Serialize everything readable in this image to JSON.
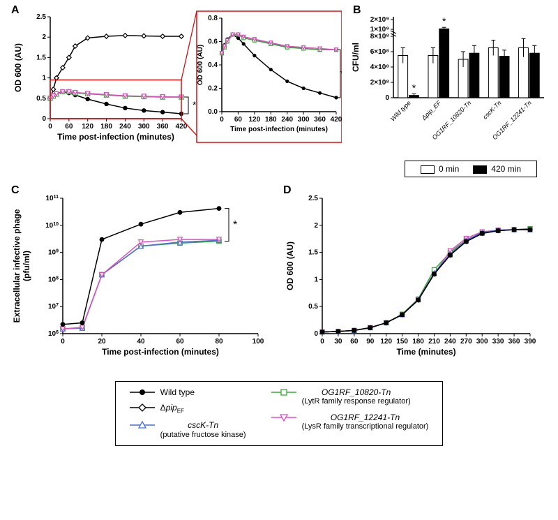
{
  "colors": {
    "black": "#000000",
    "white": "#ffffff",
    "blue": "#4a6fd8",
    "green": "#38a838",
    "magenta": "#e050c0",
    "red_box": "#d01010"
  },
  "series": {
    "wild_type": {
      "label": "Wild type",
      "color": "#000000",
      "marker": "filled-circle"
    },
    "dpip": {
      "label": "Δpip",
      "sub": "EF",
      "color": "#000000",
      "marker": "open-diamond"
    },
    "cscK": {
      "label": "cscK-Tn",
      "sub": "(putative fructose kinase)",
      "color": "#4a6fd8",
      "marker": "open-triangle-up"
    },
    "og10820": {
      "label": "OG1RF_10820-Tn",
      "sub": "(LytR family response regulator)",
      "color": "#38a838",
      "marker": "open-square"
    },
    "og12241": {
      "label": "OG1RF_12241-Tn",
      "sub": "(LysR family transcriptional regulator)",
      "color": "#e050c0",
      "marker": "open-triangle-down"
    }
  },
  "panelA": {
    "label": "A",
    "xlabel": "Time post-infection (minutes)",
    "ylabel": "OD 600 (AU)",
    "ylim": [
      0,
      2.5
    ],
    "ytick_step": 0.5,
    "xlim": [
      0,
      420
    ],
    "xticks": [
      0,
      60,
      120,
      180,
      240,
      300,
      360,
      420
    ],
    "x": [
      0,
      10,
      20,
      40,
      60,
      80,
      120,
      180,
      240,
      300,
      360,
      420
    ],
    "wild_type": [
      0.5,
      0.57,
      0.62,
      0.66,
      0.63,
      0.58,
      0.48,
      0.36,
      0.26,
      0.2,
      0.16,
      0.12
    ],
    "dpip": [
      0.5,
      0.72,
      1.0,
      1.25,
      1.5,
      1.78,
      1.98,
      2.02,
      2.04,
      2.03,
      2.02,
      2.02
    ],
    "cscK": [
      0.5,
      0.56,
      0.6,
      0.66,
      0.66,
      0.64,
      0.62,
      0.58,
      0.56,
      0.54,
      0.53,
      0.53
    ],
    "og10820": [
      0.5,
      0.55,
      0.6,
      0.66,
      0.66,
      0.63,
      0.61,
      0.58,
      0.55,
      0.54,
      0.53,
      0.53
    ],
    "og12241": [
      0.5,
      0.56,
      0.61,
      0.66,
      0.66,
      0.64,
      0.62,
      0.59,
      0.56,
      0.55,
      0.54,
      0.53
    ],
    "significance": "*",
    "inset": {
      "ylim": [
        0,
        0.8
      ],
      "ytick_step": 0.2,
      "xlim": [
        0,
        420
      ],
      "xticks": [
        0,
        60,
        120,
        180,
        240,
        300,
        360,
        420
      ]
    }
  },
  "panelB": {
    "label": "B",
    "ylabel": "CFU/ml",
    "yticks": [
      0,
      200000000.0,
      400000000.0,
      600000000.0,
      800000000.0,
      1000000000.0
    ],
    "ytick_labels": [
      "0",
      "2×10⁸",
      "4×10⁸",
      "6×10⁸",
      "8×10⁸",
      "1×10⁹"
    ],
    "ymax_display": 1300000000.0,
    "upper_tick": "2×10⁹",
    "categories": [
      "Wild type",
      "Δpip_EF",
      "OG1RF_10820-Tn",
      "cscK-Tn",
      "OG1RF_12241-Tn"
    ],
    "t0": [
      550000000.0,
      550000000.0,
      500000000.0,
      650000000.0,
      650000000.0
    ],
    "t420": [
      30000000.0,
      1050000000.0,
      580000000.0,
      540000000.0,
      580000000.0
    ],
    "err0": [
      100000000.0,
      100000000.0,
      100000000.0,
      100000000.0,
      120000000.0
    ],
    "err420": [
      20000000.0,
      150000000.0,
      100000000.0,
      80000000.0,
      100000000.0
    ],
    "sig": [
      "*",
      "*",
      "",
      "",
      ""
    ],
    "legend": [
      "0 min",
      "420 min"
    ]
  },
  "panelC": {
    "label": "C",
    "xlabel": "Time post-infection (minutes)",
    "ylabel": "Extracellular infective phage\n(pfu/ml)",
    "ylim_log": [
      6,
      11
    ],
    "yticks_log": [
      6,
      7,
      8,
      9,
      10,
      11
    ],
    "xlim": [
      0,
      100
    ],
    "xticks": [
      0,
      20,
      40,
      60,
      80,
      100
    ],
    "x": [
      0,
      10,
      20,
      40,
      60,
      80
    ],
    "wild_type": [
      2200000.0,
      2500000.0,
      3000000000.0,
      11000000000.0,
      30000000000.0,
      42000000000.0
    ],
    "cscK": [
      1500000.0,
      1600000.0,
      150000000.0,
      1700000000.0,
      2400000000.0,
      2800000000.0
    ],
    "og10820": [
      1500000.0,
      1600000.0,
      150000000.0,
      1700000000.0,
      2200000000.0,
      2600000000.0
    ],
    "og12241": [
      1500000.0,
      1700000.0,
      150000000.0,
      2400000000.0,
      3000000000.0,
      3000000000.0
    ],
    "significance": "*"
  },
  "panelD": {
    "label": "D",
    "xlabel": "Time (minutes)",
    "ylabel": "OD 600 (AU)",
    "ylim": [
      0,
      2.5
    ],
    "ytick_step": 0.5,
    "xlim": [
      0,
      390
    ],
    "xticks": [
      0,
      30,
      60,
      90,
      120,
      150,
      180,
      210,
      240,
      270,
      300,
      330,
      360,
      390
    ],
    "x": [
      0,
      30,
      60,
      90,
      120,
      150,
      180,
      210,
      240,
      270,
      300,
      330,
      360,
      390
    ],
    "wild_type": [
      0.03,
      0.04,
      0.06,
      0.11,
      0.2,
      0.35,
      0.62,
      1.1,
      1.45,
      1.7,
      1.85,
      1.9,
      1.92,
      1.92
    ],
    "cscK": [
      0.03,
      0.04,
      0.06,
      0.11,
      0.2,
      0.35,
      0.63,
      1.12,
      1.47,
      1.72,
      1.87,
      1.91,
      1.92,
      1.92
    ],
    "og10820": [
      0.03,
      0.04,
      0.06,
      0.11,
      0.2,
      0.36,
      0.64,
      1.18,
      1.5,
      1.73,
      1.86,
      1.91,
      1.92,
      1.94
    ],
    "og12241": [
      0.03,
      0.04,
      0.06,
      0.11,
      0.2,
      0.35,
      0.62,
      1.1,
      1.53,
      1.76,
      1.88,
      1.91,
      1.92,
      1.92
    ],
    "dpip": [
      0.03,
      0.04,
      0.06,
      0.11,
      0.2,
      0.35,
      0.62,
      1.1,
      1.45,
      1.7,
      1.85,
      1.9,
      1.92,
      1.92
    ]
  }
}
